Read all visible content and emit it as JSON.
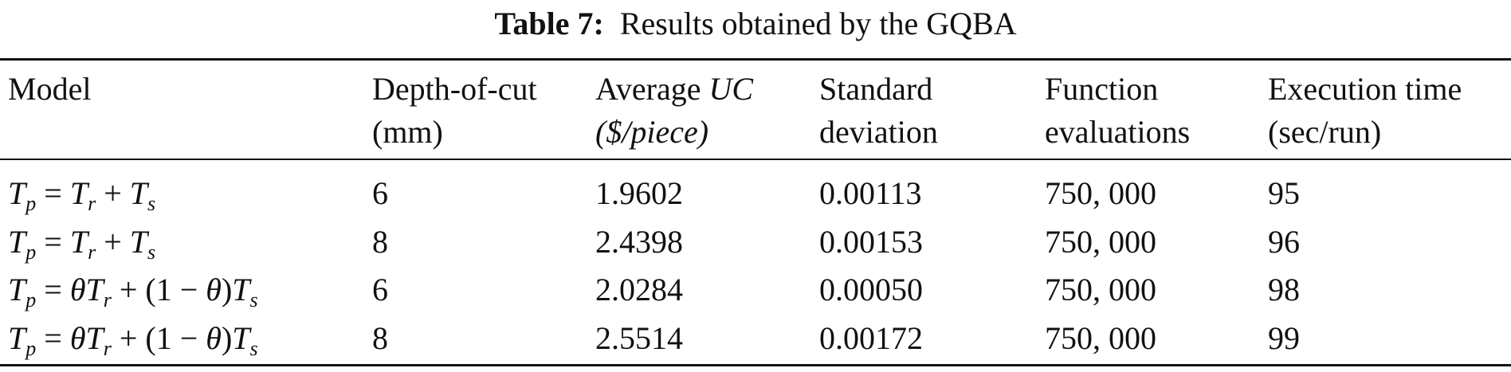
{
  "caption": {
    "label": "Table 7:",
    "text": "Results obtained by the GQBA"
  },
  "table": {
    "header": [
      [
        [
          "Model"
        ]
      ],
      [
        [
          "Depth-of-cut"
        ],
        [
          "(mm)"
        ]
      ],
      [
        [
          "Average ",
          {
            "i": "UC"
          }
        ],
        [
          {
            "i": "($/piece)"
          }
        ]
      ],
      [
        [
          "Standard"
        ],
        [
          "deviation"
        ]
      ],
      [
        [
          "Function"
        ],
        [
          "evaluations"
        ]
      ],
      [
        [
          "Execution time"
        ],
        [
          "(sec/run)"
        ]
      ]
    ],
    "rows": [
      [
        [
          {
            "i": "T",
            "sub": "p"
          },
          " = ",
          {
            "i": "T",
            "sub": "r"
          },
          " + ",
          {
            "i": "T",
            "sub": "s"
          }
        ],
        6,
        "1.9602",
        "0.00113",
        "750, 000",
        95
      ],
      [
        [
          {
            "i": "T",
            "sub": "p"
          },
          " = ",
          {
            "i": "T",
            "sub": "r"
          },
          " + ",
          {
            "i": "T",
            "sub": "s"
          }
        ],
        8,
        "2.4398",
        "0.00153",
        "750, 000",
        96
      ],
      [
        [
          {
            "i": "T",
            "sub": "p"
          },
          " = ",
          {
            "i": "θ"
          },
          {
            "i": "T",
            "sub": "r"
          },
          " + (1 − ",
          {
            "i": "θ"
          },
          ")",
          {
            "i": "T",
            "sub": "s"
          }
        ],
        6,
        "2.0284",
        "0.00050",
        "750, 000",
        98
      ],
      [
        [
          {
            "i": "T",
            "sub": "p"
          },
          " = ",
          {
            "i": "θ"
          },
          {
            "i": "T",
            "sub": "r"
          },
          " + (1 − ",
          {
            "i": "θ"
          },
          ")",
          {
            "i": "T",
            "sub": "s"
          }
        ],
        8,
        "2.5514",
        "0.00172",
        "750, 000",
        99
      ]
    ]
  }
}
